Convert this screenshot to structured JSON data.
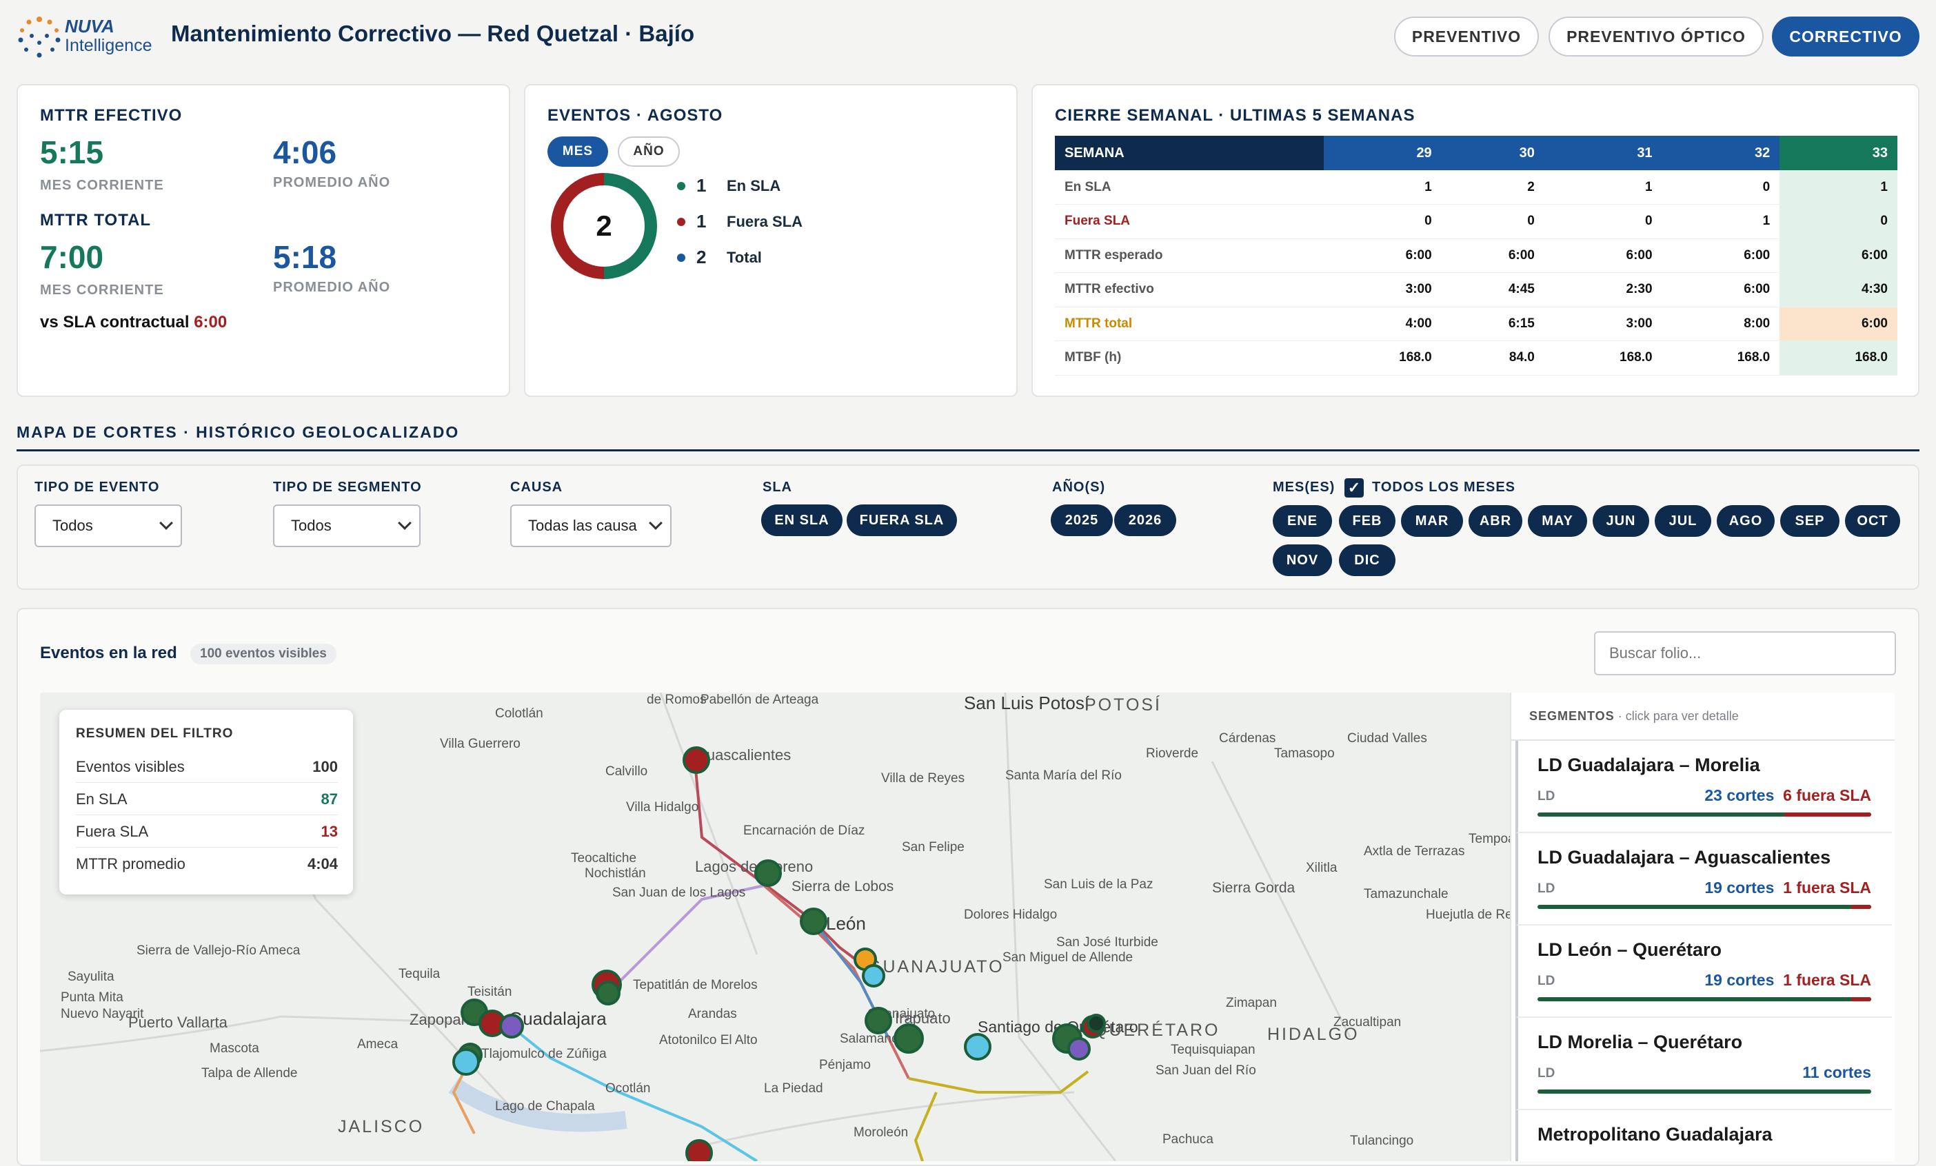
{
  "header": {
    "logo_top": "NUVA",
    "logo_bottom": "Intelligence",
    "title": "Mantenimiento Correctivo — Red Quetzal · Bajío",
    "tabs": [
      {
        "label": "PREVENTIVO"
      },
      {
        "label": "PREVENTIVO ÓPTICO"
      },
      {
        "label": "CORRECTIVO"
      }
    ]
  },
  "mttr": {
    "efectivo_label": "MTTR EFECTIVO",
    "efectivo_mes": "5:15",
    "efectivo_anio": "4:06",
    "mes_label": "MES CORRIENTE",
    "anio_label": "PROMEDIO AÑO",
    "total_label": "MTTR TOTAL",
    "total_mes": "7:00",
    "total_anio": "5:18",
    "sla_text": "vs SLA contractual",
    "sla_value": "6:00"
  },
  "eventos": {
    "title": "EVENTOS · AGOSTO",
    "toggle_mes": "MES",
    "toggle_anio": "AÑO",
    "total": "2",
    "legend": [
      {
        "value": "1",
        "label": "En SLA",
        "color": "#16785a"
      },
      {
        "value": "1",
        "label": "Fuera SLA",
        "color": "#a32020"
      },
      {
        "value": "2",
        "label": "Total",
        "color": "#1b56a0"
      }
    ]
  },
  "cierre": {
    "title": "CIERRE SEMANAL · ULTIMAS 5 SEMANAS",
    "header": [
      "SEMANA",
      "29",
      "30",
      "31",
      "32",
      "33"
    ],
    "rows": [
      [
        "En SLA",
        "1",
        "2",
        "1",
        "0",
        "1"
      ],
      [
        "Fuera SLA",
        "0",
        "0",
        "0",
        "1",
        "0"
      ],
      [
        "MTTR esperado",
        "6:00",
        "6:00",
        "6:00",
        "6:00",
        "6:00"
      ],
      [
        "MTTR efectivo",
        "3:00",
        "4:45",
        "2:30",
        "6:00",
        "4:30"
      ],
      [
        "MTTR total",
        "4:00",
        "6:15",
        "3:00",
        "8:00",
        "6:00"
      ],
      [
        "MTBF (h)",
        "168.0",
        "84.0",
        "168.0",
        "168.0",
        "168.0"
      ]
    ]
  },
  "mapa": {
    "section": "MAPA DE CORTES · HISTÓRICO GEOLOCALIZADO",
    "filters": {
      "tipo_evento_label": "TIPO DE EVENTO",
      "tipo_evento": "Todos",
      "tipo_segmento_label": "TIPO DE SEGMENTO",
      "tipo_segmento": "Todos",
      "causa_label": "CAUSA",
      "causa": "Todas las causa",
      "sla_label": "SLA",
      "sla": [
        "EN SLA",
        "FUERA SLA"
      ],
      "anios_label": "AÑO(S)",
      "anios": [
        "2025",
        "2026"
      ],
      "meses_label": "MES(ES)",
      "todos_meses": "TODOS LOS MESES",
      "meses": [
        "ENE",
        "FEB",
        "MAR",
        "ABR",
        "MAY",
        "JUN",
        "JUL",
        "AGO",
        "SEP",
        "OCT",
        "NOV",
        "DIC"
      ]
    },
    "eventos_title": "Eventos en la red",
    "eventos_badge": "100 eventos visibles",
    "search_placeholder": "Buscar folio...",
    "summary": {
      "title": "RESUMEN DEL FILTRO",
      "rows": [
        [
          "Eventos visibles",
          "100"
        ],
        [
          "En SLA",
          "87"
        ],
        [
          "Fuera SLA",
          "13"
        ],
        [
          "MTTR promedio",
          "4:04"
        ]
      ]
    },
    "segmentos": {
      "title": "SEGMENTOS",
      "hint": "· click para ver detalle",
      "items": [
        {
          "name": "LD Guadalajara – Morelia",
          "type": "LD",
          "cortes": "23 cortes",
          "fuera": "6 fuera SLA"
        },
        {
          "name": "LD Guadalajara – Aguascalientes",
          "type": "LD",
          "cortes": "19 cortes",
          "fuera": "1 fuera SLA"
        },
        {
          "name": "LD León – Querétaro",
          "type": "LD",
          "cortes": "19 cortes",
          "fuera": "1 fuera SLA"
        },
        {
          "name": "LD Morelia – Querétaro",
          "type": "LD",
          "cortes": "11 cortes",
          "fuera": ""
        },
        {
          "name": "Metropolitano Guadalajara",
          "type": "",
          "cortes": "",
          "fuera": ""
        }
      ]
    },
    "places": [
      "San Luis Potosí",
      "POTOSÍ",
      "Aguascalientes",
      "Lagos de Moreno",
      "León",
      "GUANAJUATO",
      "Guanajuato",
      "Irapuato",
      "Salamanca",
      "Santiago de Querétaro",
      "QUERÉTARO",
      "HIDALGO",
      "Zapopan",
      "Guadalajara",
      "Tlajomulco de Zúñiga",
      "Puerto Vallarta",
      "JALISCO",
      "Lago de Chapala",
      "Sierra de Vallejo-Río Ameca",
      "Sierra de Lobos",
      "Sierra Gorda",
      "Colotlán",
      "Villa Guerrero",
      "Calvillo",
      "Villa Hidalgo",
      "Encarnación de Díaz",
      "Teocaltiche",
      "Nochistlán",
      "San Juan de los Lagos",
      "Tepatitlán de Morelos",
      "Arandas",
      "Atotonilco El Alto",
      "La Piedad",
      "Pénjamo",
      "Ocotlán",
      "Moroleón",
      "Tequila",
      "Ameca",
      "Mascota",
      "Talpa de Allende",
      "Sayulita",
      "Punta Mita",
      "Nuevo Nayarit",
      "Dolores Hidalgo",
      "San Miguel de Allende",
      "San Felipe",
      "Villa de Reyes",
      "Santa María del Río",
      "San Luis de la Paz",
      "San José Iturbide",
      "Zimapan",
      "Zacualtipan",
      "Tequisquiapan",
      "San Juan del Río",
      "Pachuca",
      "Tulancingo",
      "Xilitla",
      "Tamazunchale",
      "Huejutla de Reyes",
      "Axtla de Terrazas",
      "Cárdenas",
      "Rioverde",
      "Tamasopo",
      "Ciudad Valles",
      "Tempoal",
      "Teisitán",
      "Pabellón de Arteaga",
      "de Romos"
    ]
  }
}
